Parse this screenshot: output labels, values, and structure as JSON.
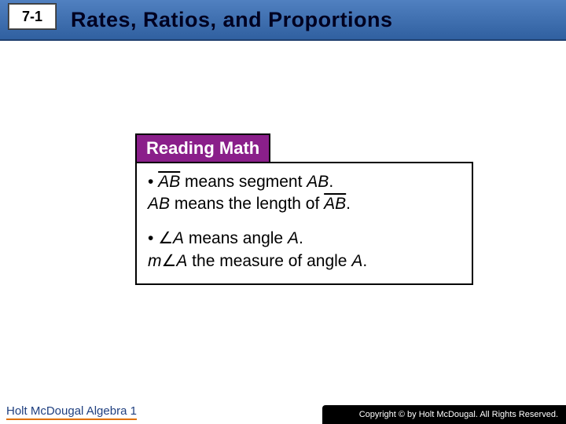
{
  "header": {
    "section_number": "7-1",
    "title": "Rates, Ratios, and Proportions",
    "title_color": "#000020",
    "bg_gradient_top": "#5080c0",
    "bg_gradient_bottom": "#3060a0"
  },
  "callout": {
    "header_label": "Reading Math",
    "header_bg": "#8a1f8a",
    "header_fg": "#ffffff",
    "border_color": "#000000",
    "bullet1_prefix": "• ",
    "bullet1_ab_over": "AB",
    "bullet1_rest": " means segment ",
    "bullet1_ab_ital": "AB",
    "bullet1_period": ".",
    "line2_ab_ital": "AB",
    "line2_mid": " means the length of ",
    "line2_ab_over": "AB",
    "line2_period": ".",
    "bullet2_prefix": "• ",
    "bullet2_angle": "∠",
    "bullet2_A": "A",
    "bullet2_rest": " means angle ",
    "bullet2_A2": "A",
    "bullet2_period": ".",
    "line4_m": "m",
    "line4_angle": "∠",
    "line4_A": "A",
    "line4_rest": " the measure of angle ",
    "line4_A2": "A",
    "line4_period": "."
  },
  "footer": {
    "left_text": "Holt McDougal Algebra 1",
    "right_text": "Copyright © by Holt McDougal. All Rights Reserved.",
    "underline_color": "#e07000",
    "left_color": "#204080"
  }
}
